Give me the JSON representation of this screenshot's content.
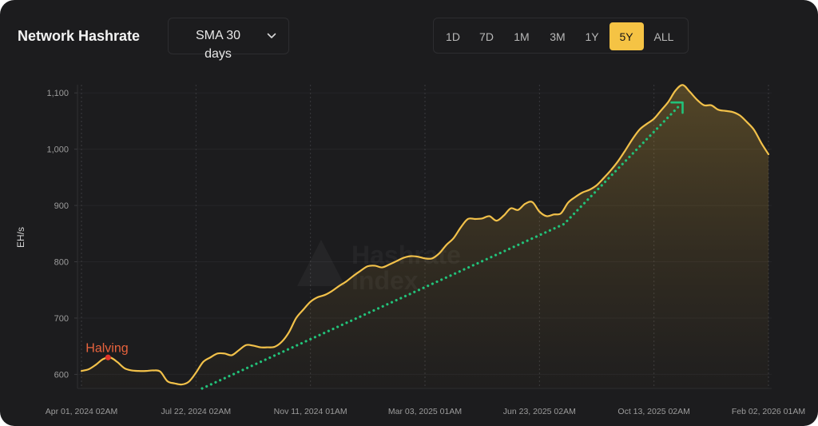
{
  "header": {
    "sma_select": {
      "value": "SMA 30 days",
      "icon": "chevron-down-icon"
    },
    "ranges": [
      {
        "label": "1D",
        "selected": false
      },
      {
        "label": "7D",
        "selected": false
      },
      {
        "label": "1M",
        "selected": false
      },
      {
        "label": "3M",
        "selected": false
      },
      {
        "label": "1Y",
        "selected": false
      },
      {
        "label": "5Y",
        "selected": true
      },
      {
        "label": "ALL",
        "selected": false
      }
    ]
  },
  "colors": {
    "card_background": "#1c1c1e",
    "accent": "#f5c344",
    "series_line": "#f2c14a",
    "trend_arrow": "#22c27a",
    "halving_text": "#e8633d",
    "halving_dot": "#e2352a"
  },
  "watermark": {
    "line1": "Hashrate",
    "line2": "Index"
  },
  "chart_data": {
    "type": "area",
    "title": "Network Hashrate",
    "ylabel": "EH/s",
    "x_scale": "time",
    "xlim": [
      "2024-04-01",
      "2026-02-02"
    ],
    "ylim": [
      575,
      1123
    ],
    "grid": true,
    "legend": "none",
    "x_ticks": [
      {
        "x": "2024-04-01",
        "label": "Apr 01, 2024 02AM"
      },
      {
        "x": "2024-07-22",
        "label": "Jul 22, 2024 02AM"
      },
      {
        "x": "2024-11-11",
        "label": "Nov 11, 2024 01AM"
      },
      {
        "x": "2025-03-03",
        "label": "Mar 03, 2025 01AM"
      },
      {
        "x": "2025-06-23",
        "label": "Jun 23, 2025 02AM"
      },
      {
        "x": "2025-10-13",
        "label": "Oct 13, 2025 02AM"
      },
      {
        "x": "2026-02-02",
        "label": "Feb 02, 2026 01AM"
      }
    ],
    "y_ticks": [
      {
        "value": 600,
        "label": "600"
      },
      {
        "value": 700,
        "label": "700"
      },
      {
        "value": 800,
        "label": "800"
      },
      {
        "value": 900,
        "label": "900"
      },
      {
        "value": 1000,
        "label": "1,000"
      },
      {
        "value": 1100,
        "label": "1,100"
      }
    ],
    "x": [
      "2024-04-01",
      "2024-04-08",
      "2024-04-15",
      "2024-04-22",
      "2024-04-29",
      "2024-05-06",
      "2024-05-13",
      "2024-05-20",
      "2024-05-27",
      "2024-06-03",
      "2024-06-10",
      "2024-06-17",
      "2024-06-24",
      "2024-07-01",
      "2024-07-08",
      "2024-07-15",
      "2024-07-22",
      "2024-07-29",
      "2024-08-05",
      "2024-08-12",
      "2024-08-19",
      "2024-08-26",
      "2024-09-02",
      "2024-09-09",
      "2024-09-16",
      "2024-09-23",
      "2024-09-30",
      "2024-10-07",
      "2024-10-14",
      "2024-10-21",
      "2024-10-28",
      "2024-11-04",
      "2024-11-11",
      "2024-11-18",
      "2024-11-25",
      "2024-12-02",
      "2024-12-09",
      "2024-12-16",
      "2024-12-23",
      "2024-12-30",
      "2025-01-06",
      "2025-01-13",
      "2025-01-20",
      "2025-01-27",
      "2025-02-03",
      "2025-02-10",
      "2025-02-17",
      "2025-02-24",
      "2025-03-03",
      "2025-03-10",
      "2025-03-17",
      "2025-03-24",
      "2025-03-31",
      "2025-04-07",
      "2025-04-14",
      "2025-04-21",
      "2025-04-28",
      "2025-05-05",
      "2025-05-12",
      "2025-05-19",
      "2025-05-26",
      "2025-06-02",
      "2025-06-09",
      "2025-06-16",
      "2025-06-23",
      "2025-06-30",
      "2025-07-07",
      "2025-07-14",
      "2025-07-21",
      "2025-07-28",
      "2025-08-04",
      "2025-08-11",
      "2025-08-18",
      "2025-08-25",
      "2025-09-01",
      "2025-09-08",
      "2025-09-15",
      "2025-09-22",
      "2025-09-29",
      "2025-10-06",
      "2025-10-13",
      "2025-10-20",
      "2025-10-27",
      "2025-11-03",
      "2025-11-10",
      "2025-11-17",
      "2025-11-24",
      "2025-12-01",
      "2025-12-08",
      "2025-12-15",
      "2025-12-22",
      "2025-12-29",
      "2026-01-05",
      "2026-01-12",
      "2026-01-19",
      "2026-01-26",
      "2026-02-02"
    ],
    "series": [
      {
        "values": [
          606,
          609,
          617,
          627,
          630,
          622,
          611,
          607,
          606,
          606,
          607,
          605,
          588,
          584,
          582,
          587,
          603,
          622,
          630,
          637,
          637,
          634,
          643,
          652,
          651,
          648,
          648,
          649,
          658,
          675,
          700,
          715,
          729,
          737,
          741,
          748,
          757,
          765,
          775,
          784,
          792,
          793,
          790,
          795,
          801,
          807,
          810,
          809,
          806,
          806,
          815,
          830,
          842,
          861,
          876,
          876,
          877,
          881,
          873,
          882,
          895,
          892,
          903,
          906,
          889,
          881,
          884,
          886,
          905,
          915,
          923,
          928,
          936,
          949,
          963,
          979,
          998,
          1018,
          1035,
          1045,
          1054,
          1069,
          1084,
          1104,
          1114,
          1102,
          1088,
          1078,
          1078,
          1070,
          1068,
          1066,
          1060,
          1048,
          1034,
          1011,
          991
        ]
      }
    ],
    "annotations": [
      {
        "text": "Halving",
        "x": "2024-04-27",
        "y": 630
      }
    ],
    "trend_arrow": {
      "points": [
        {
          "x": "2024-07-28",
          "y": 575
        },
        {
          "x": "2025-07-17",
          "y": 867
        },
        {
          "x": "2025-11-10",
          "y": 1083
        }
      ]
    }
  }
}
